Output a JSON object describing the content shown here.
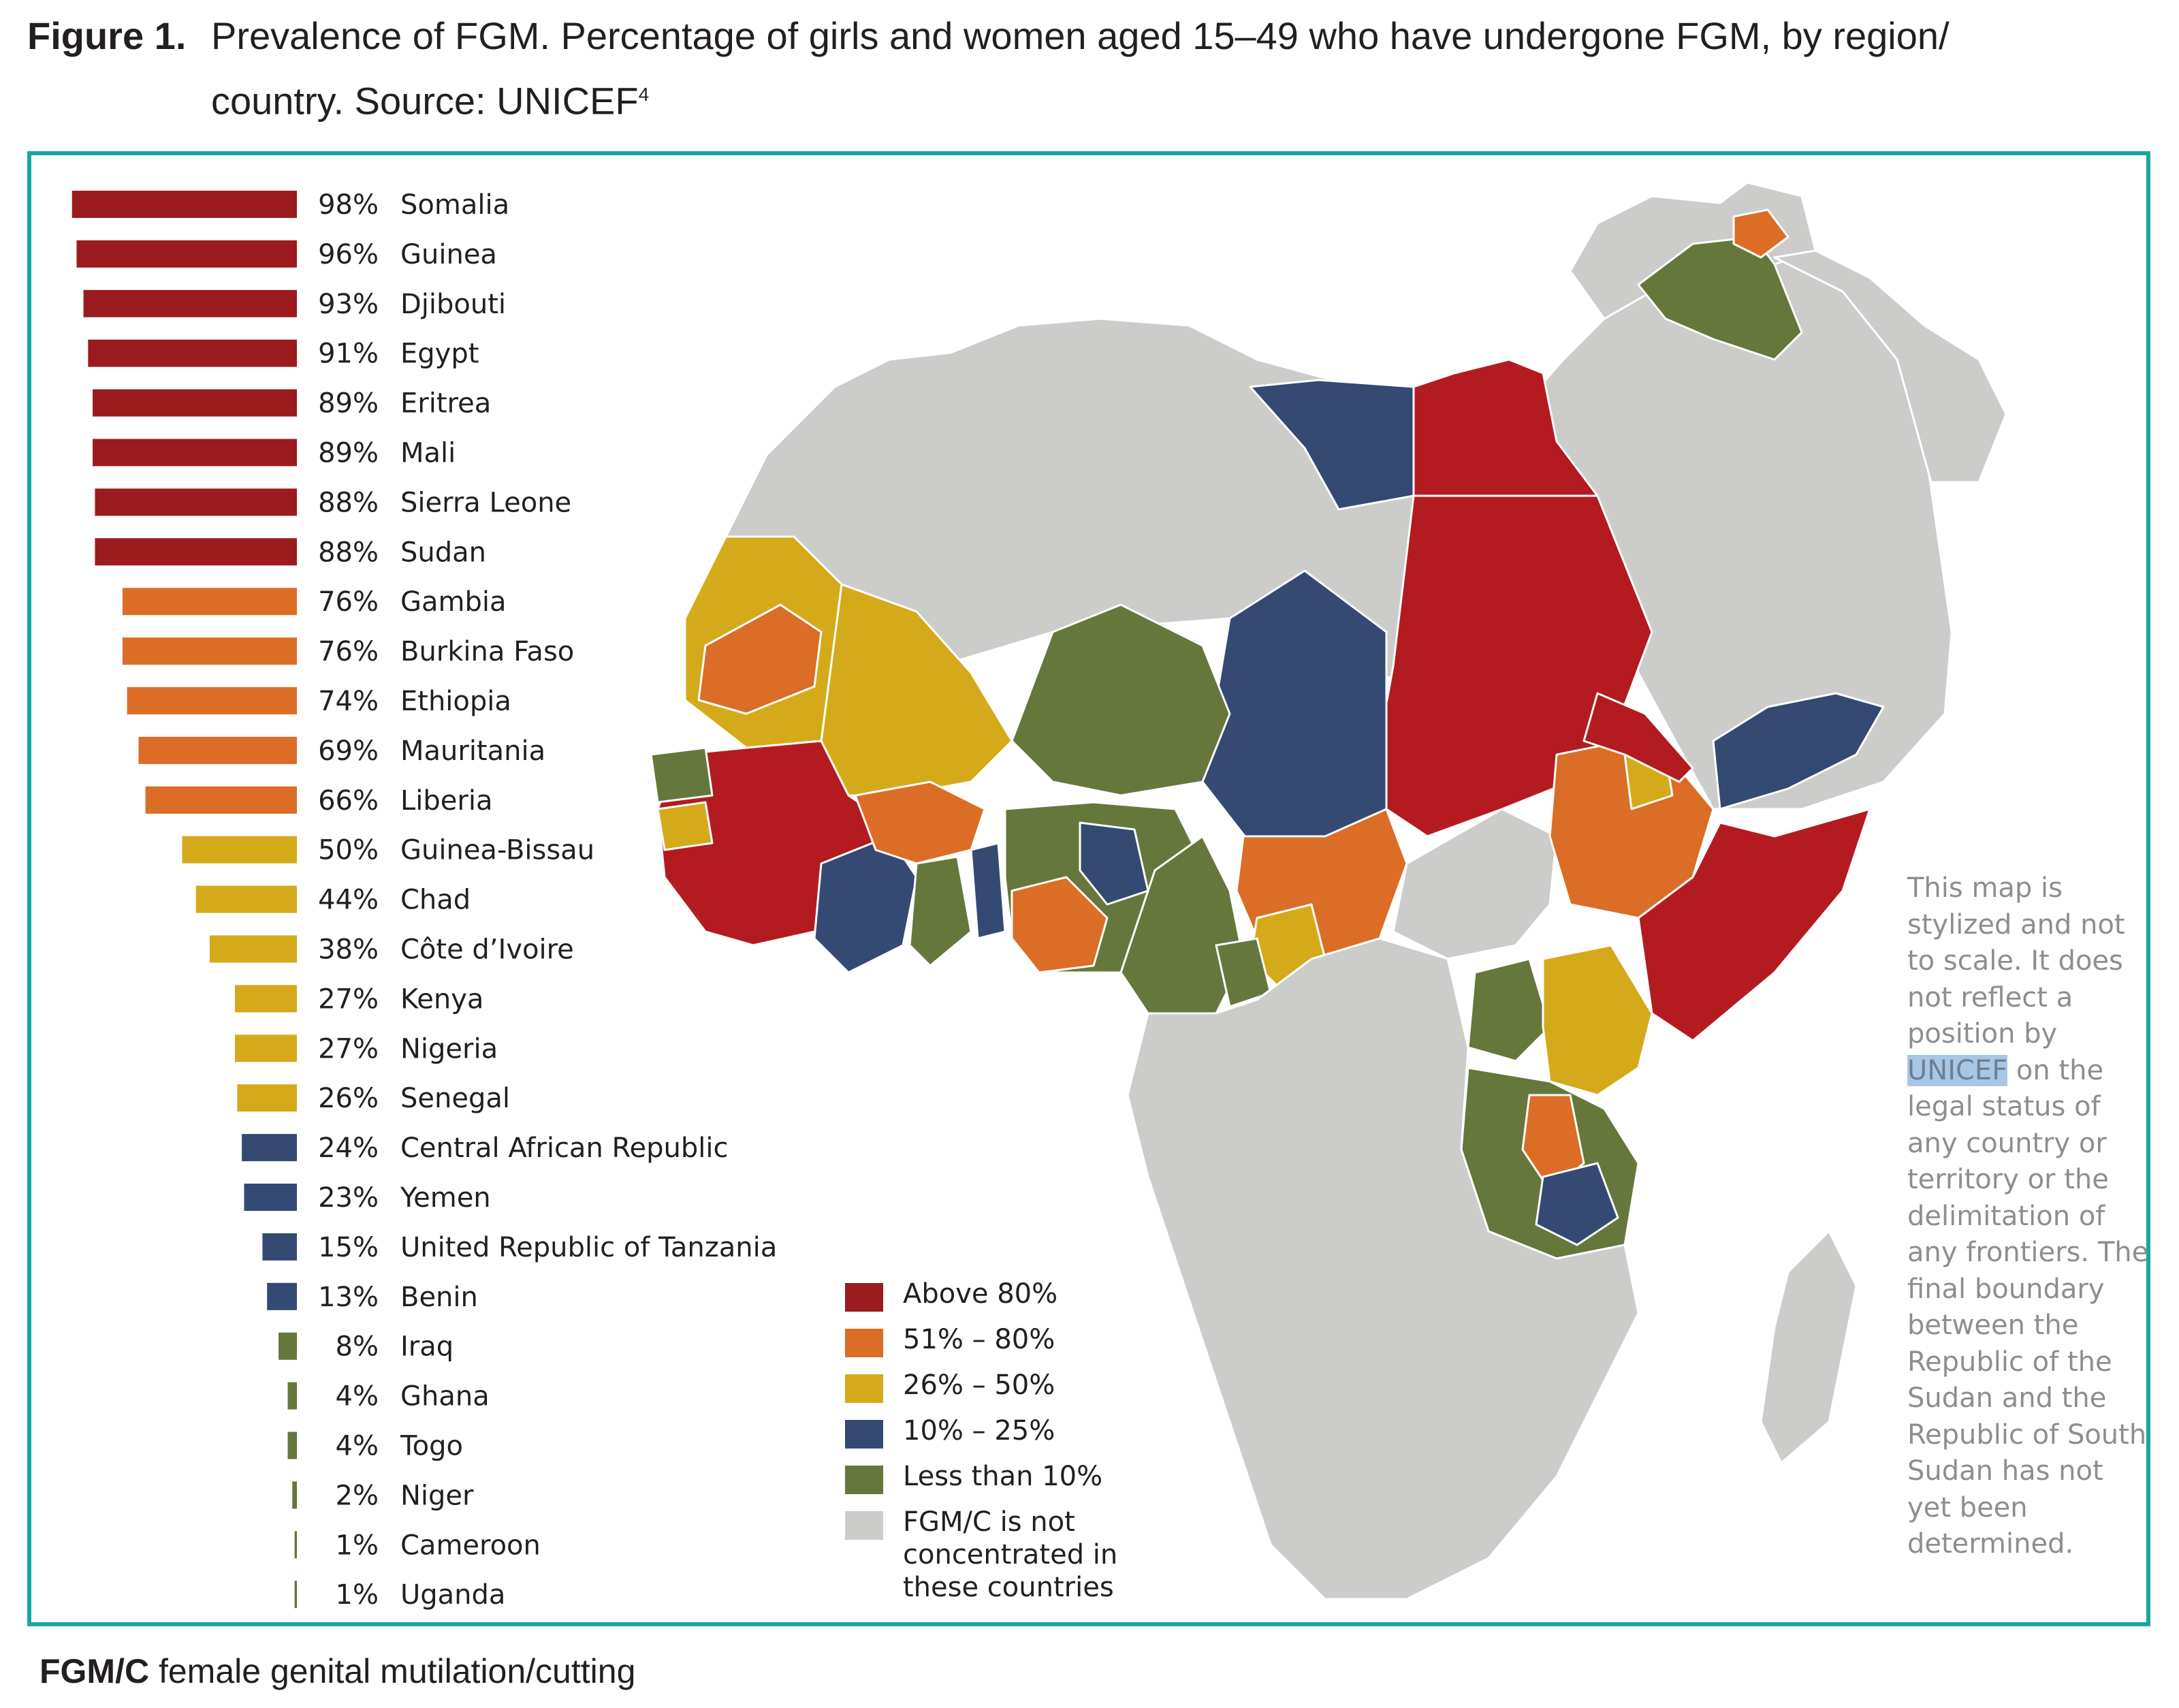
{
  "figure": {
    "label": "Figure 1.",
    "title_line1": "Prevalence of FGM. Percentage of girls and women aged 15–49 who have undergone FGM, by region/",
    "title_line2": "country. Source: UNICEF",
    "title_superscript": "4"
  },
  "chart_data": {
    "type": "bar",
    "orientation": "horizontal",
    "title": "",
    "xlabel": "",
    "ylabel": "",
    "value_suffix": "%",
    "xlim": [
      0,
      100
    ],
    "categories": [
      "Somalia",
      "Guinea",
      "Djibouti",
      "Egypt",
      "Eritrea",
      "Mali",
      "Sierra Leone",
      "Sudan",
      "Gambia",
      "Burkina Faso",
      "Ethiopia",
      "Mauritania",
      "Liberia",
      "Guinea-Bissau",
      "Chad",
      "Côte d’Ivoire",
      "Kenya",
      "Nigeria",
      "Senegal",
      "Central African Republic",
      "Yemen",
      "United Republic of Tanzania",
      "Benin",
      "Iraq",
      "Ghana",
      "Togo",
      "Niger",
      "Cameroon",
      "Uganda"
    ],
    "values": [
      98,
      96,
      93,
      91,
      89,
      89,
      88,
      88,
      76,
      76,
      74,
      69,
      66,
      50,
      44,
      38,
      27,
      27,
      26,
      24,
      23,
      15,
      13,
      8,
      4,
      4,
      2,
      1,
      1
    ]
  },
  "legend": {
    "items": [
      {
        "label": "Above 80%",
        "color": "#9b1b1f"
      },
      {
        "label": "51% – 80%",
        "color": "#dc6d26"
      },
      {
        "label": "26% – 50%",
        "color": "#d5aa1a"
      },
      {
        "label": "10% – 25%",
        "color": "#344a72"
      },
      {
        "label": "Less than 10%",
        "color": "#66773c"
      },
      {
        "label": "FGM/C is not concentrated in these countries",
        "color": "#cccccb"
      }
    ]
  },
  "colors": {
    "frame": "#19a79d",
    "map_red": "#b31b21",
    "map_orange": "#dc6d26",
    "map_yellow": "#d5aa1a",
    "map_blue": "#344a72",
    "map_green": "#66773c",
    "map_grey": "#cccccb",
    "note_text": "#8d8e90",
    "highlight": "#a7c7e7"
  },
  "note": {
    "before": "This map is stylized and not to scale. It does not reflect a position by ",
    "highlight": "UNICEF",
    "after": " on the legal status of any country or territory or the delimitation of any frontiers. The final boundary between the Republic of the Sudan and the Republic of South Sudan has not yet been determined."
  },
  "footnote": {
    "abbrev": "FGM/C",
    "text": " female genital mutilation/cutting"
  }
}
